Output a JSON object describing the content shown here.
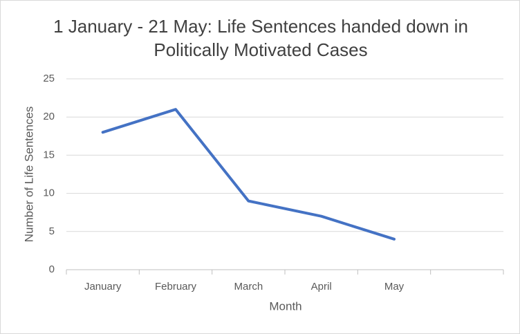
{
  "chart_data": {
    "type": "line",
    "title": "1 January - 21 May: Life Sentences handed down in Politically Motivated Cases",
    "x_label": "Month",
    "y_label": "Number of Life Sentences",
    "categories": [
      "January",
      "February",
      "March",
      "April",
      "May",
      null
    ],
    "series": [
      {
        "name": "Life Sentences",
        "color": "#4472c4",
        "values": [
          18,
          21,
          9,
          7,
          4,
          null
        ]
      }
    ],
    "ylim": [
      0,
      25
    ],
    "yticks": [
      0,
      5,
      10,
      15,
      20,
      25
    ],
    "grid": true,
    "legend": false
  }
}
